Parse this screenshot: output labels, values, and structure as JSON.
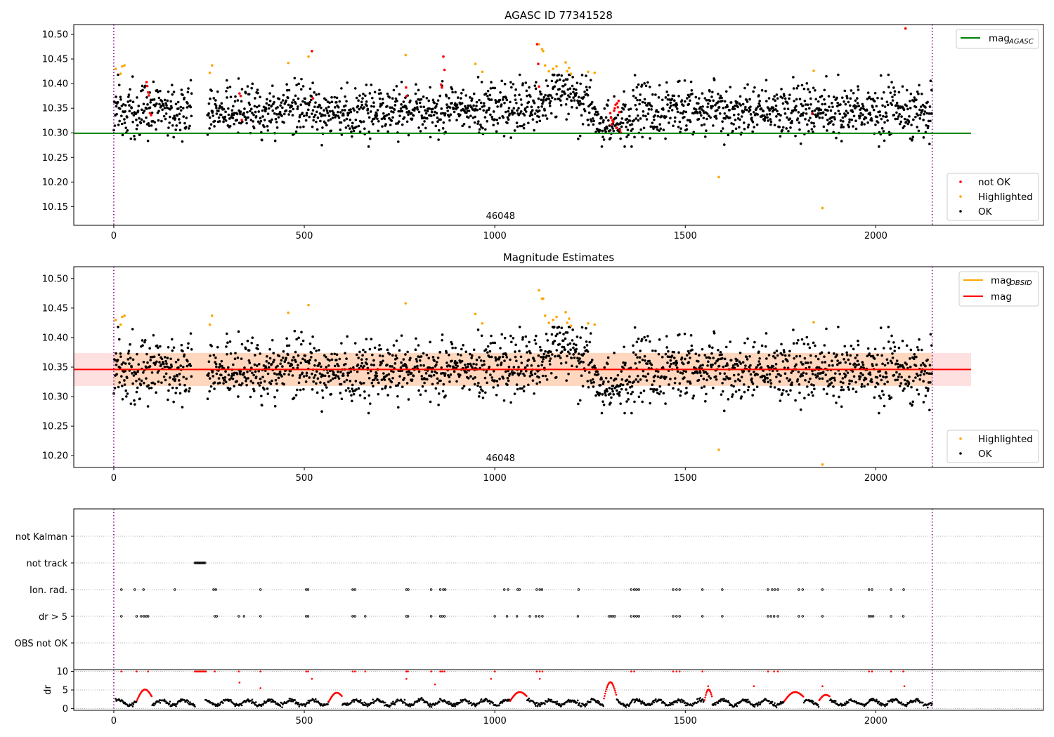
{
  "chart_data": [
    {
      "type": "scatter",
      "title": "AGASC ID 77341528",
      "annotation": "46048",
      "xlim": [
        -105,
        2440
      ],
      "ylim": [
        10.112,
        10.52
      ],
      "xticks": [
        0,
        500,
        1000,
        1500,
        2000
      ],
      "yticks": [
        10.15,
        10.2,
        10.25,
        10.3,
        10.35,
        10.4,
        10.45,
        10.5
      ],
      "ytick_labels": [
        "10.15",
        "10.20",
        "10.25",
        "10.30",
        "10.35",
        "10.40",
        "10.45",
        "10.50"
      ],
      "vlines": [
        0,
        2148
      ],
      "reference_line": {
        "name": "mag_AGASC",
        "y": 10.299,
        "x": [
          -105,
          2250
        ],
        "color": "#008000"
      },
      "legend_lines": [
        {
          "label": "mag",
          "sub": "AGASC",
          "color": "#008000"
        }
      ],
      "legend_points": [
        {
          "label": "not OK",
          "color": "#ff0000"
        },
        {
          "label": "Highlighted",
          "color": "#ffa500"
        },
        {
          "label": "OK",
          "color": "#000000"
        }
      ],
      "series": [
        {
          "name": "OK",
          "color": "#000000",
          "description": "dense scatter of per-observation magnitudes, roughly 10.27-10.42, with a bump near x=1100-1250 (up to ~10.41) and a dip near x=1300-1350 (~10.29)"
        },
        {
          "name": "Highlighted",
          "color": "#ffa500",
          "points": [
            [
              5,
              10.43
            ],
            [
              18,
              10.42
            ],
            [
              22,
              10.435
            ],
            [
              28,
              10.437
            ],
            [
              252,
              10.422
            ],
            [
              258,
              10.437
            ],
            [
              458,
              10.442
            ],
            [
              511,
              10.455
            ],
            [
              766,
              10.458
            ],
            [
              949,
              10.44
            ],
            [
              967,
              10.424
            ],
            [
              1116,
              10.48
            ],
            [
              1124,
              10.47
            ],
            [
              1127,
              10.466
            ],
            [
              1132,
              10.437
            ],
            [
              1142,
              10.425
            ],
            [
              1153,
              10.43
            ],
            [
              1162,
              10.435
            ],
            [
              1186,
              10.443
            ],
            [
              1190,
              10.425
            ],
            [
              1195,
              10.432
            ],
            [
              1200,
              10.42
            ],
            [
              1245,
              10.424
            ],
            [
              1262,
              10.422
            ],
            [
              1588,
              10.21
            ],
            [
              1837,
              10.426
            ],
            [
              1860,
              10.147
            ]
          ]
        },
        {
          "name": "not OK",
          "color": "#ff0000",
          "points": [
            [
              86,
              10.403
            ],
            [
              88,
              10.395
            ],
            [
              90,
              10.382
            ],
            [
              92,
              10.376
            ],
            [
              95,
              10.34
            ],
            [
              98,
              10.336
            ],
            [
              330,
              10.38
            ],
            [
              333,
              10.375
            ],
            [
              336,
              10.326
            ],
            [
              520,
              10.466
            ],
            [
              523,
              10.37
            ],
            [
              767,
              10.392
            ],
            [
              769,
              10.375
            ],
            [
              859,
              10.398
            ],
            [
              861,
              10.392
            ],
            [
              865,
              10.455
            ],
            [
              868,
              10.428
            ],
            [
              1111,
              10.48
            ],
            [
              1114,
              10.44
            ],
            [
              1116,
              10.394
            ],
            [
              1303,
              10.34
            ],
            [
              1305,
              10.33
            ],
            [
              1307,
              10.317
            ],
            [
              1309,
              10.325
            ],
            [
              1311,
              10.322
            ],
            [
              1313,
              10.345
            ],
            [
              1315,
              10.35
            ],
            [
              1317,
              10.357
            ],
            [
              1319,
              10.31
            ],
            [
              1321,
              10.36
            ],
            [
              1323,
              10.352
            ],
            [
              1325,
              10.365
            ],
            [
              1327,
              10.342
            ],
            [
              1329,
              10.306
            ],
            [
              1331,
              10.3
            ],
            [
              1833,
              10.339
            ],
            [
              2078,
              10.512
            ]
          ]
        }
      ]
    },
    {
      "type": "scatter",
      "title": "Magnitude Estimates",
      "annotation": "46048",
      "xlim": [
        -105,
        2440
      ],
      "ylim": [
        10.18,
        10.52
      ],
      "xticks": [
        0,
        500,
        1000,
        1500,
        2000
      ],
      "yticks": [
        10.2,
        10.25,
        10.3,
        10.35,
        10.4,
        10.45,
        10.5
      ],
      "ytick_labels": [
        "10.20",
        "10.25",
        "10.30",
        "10.35",
        "10.40",
        "10.45",
        "10.50"
      ],
      "vlines": [
        0,
        2148
      ],
      "mag_line": {
        "name": "mag",
        "y": 10.346,
        "x": [
          -105,
          2250
        ],
        "band": [
          10.318,
          10.374
        ],
        "color": "#ff0000"
      },
      "mag_obsid": {
        "name": "mag_OBSID",
        "y": 10.346,
        "x": [
          0,
          2148
        ],
        "band": [
          10.318,
          10.374
        ],
        "color": "#ffa500"
      },
      "legend_lines": [
        {
          "label": "mag",
          "sub": "OBSID",
          "color": "#ffa500"
        },
        {
          "label": "mag",
          "sub": "",
          "color": "#ff0000"
        }
      ],
      "legend_points": [
        {
          "label": "Highlighted",
          "color": "#ffa500"
        },
        {
          "label": "OK",
          "color": "#000000"
        }
      ],
      "series": [
        {
          "name": "OK",
          "color": "#000000",
          "description": "same observations as top panel excluding not-OK points"
        },
        {
          "name": "Highlighted",
          "color": "#ffa500",
          "points": [
            [
              5,
              10.43
            ],
            [
              18,
              10.422
            ],
            [
              22,
              10.435
            ],
            [
              28,
              10.437
            ],
            [
              252,
              10.422
            ],
            [
              258,
              10.437
            ],
            [
              458,
              10.442
            ],
            [
              511,
              10.455
            ],
            [
              766,
              10.458
            ],
            [
              949,
              10.44
            ],
            [
              967,
              10.424
            ],
            [
              1116,
              10.48
            ],
            [
              1124,
              10.466
            ],
            [
              1127,
              10.466
            ],
            [
              1132,
              10.437
            ],
            [
              1142,
              10.425
            ],
            [
              1153,
              10.43
            ],
            [
              1162,
              10.435
            ],
            [
              1186,
              10.443
            ],
            [
              1190,
              10.425
            ],
            [
              1195,
              10.432
            ],
            [
              1200,
              10.42
            ],
            [
              1245,
              10.424
            ],
            [
              1262,
              10.422
            ],
            [
              1588,
              10.21
            ],
            [
              1837,
              10.426
            ],
            [
              1860,
              10.185
            ]
          ]
        }
      ]
    },
    {
      "type": "scatter",
      "title": "",
      "xlim": [
        -105,
        2440
      ],
      "categories": [
        "not Kalman",
        "not track",
        "Ion. rad.",
        "dr > 5",
        "OBS not OK"
      ],
      "vlines": [
        0,
        2148
      ],
      "flag_points": {
        "not track": [
          [
            213,
            225
          ],
          [
            225,
            240
          ]
        ],
        "Ion. rad.": [
          20,
          55,
          78,
          160,
          262,
          268,
          385,
          505,
          510,
          627,
          633,
          768,
          773,
          833,
          857,
          865,
          870,
          1025,
          1035,
          1060,
          1065,
          1110,
          1118,
          1124,
          1220,
          1358,
          1366,
          1372,
          1378,
          1468,
          1477,
          1485,
          1545,
          1597,
          1717,
          1728,
          1735,
          1743,
          1798,
          1808,
          1860,
          1982,
          1990,
          2040,
          2073
        ],
        "dr > 5": [
          20,
          60,
          72,
          79,
          85,
          90,
          265,
          270,
          328,
          342,
          385,
          505,
          510,
          627,
          633,
          660,
          768,
          772,
          833,
          857,
          862,
          868,
          1000,
          1032,
          1058,
          1092,
          1108,
          1117,
          1125,
          1218,
          1300,
          1305,
          1310,
          1315,
          1358,
          1366,
          1372,
          1378,
          1468,
          1477,
          1485,
          1545,
          1597,
          1717,
          1725,
          1733,
          1743,
          1798,
          1808,
          1860,
          1982,
          1987,
          1993,
          2040,
          2072
        ]
      }
    },
    {
      "type": "scatter",
      "title": "",
      "ylabel": "dr",
      "xlim": [
        -105,
        2440
      ],
      "ylim": [
        -0.5,
        10.5
      ],
      "xticks": [
        0,
        500,
        1000,
        1500,
        2000
      ],
      "yticks": [
        0,
        5,
        10
      ],
      "ytick_labels": [
        "0",
        "5",
        "10"
      ],
      "vlines": [
        0,
        2148
      ],
      "series": [
        {
          "name": "dr OK",
          "color": "#000000",
          "description": "dr values mostly between 0.5 and 3 across all observations"
        },
        {
          "name": "dr not OK",
          "color": "#ff0000",
          "description": "dr values above 3, up to clipped 10"
        }
      ]
    }
  ]
}
